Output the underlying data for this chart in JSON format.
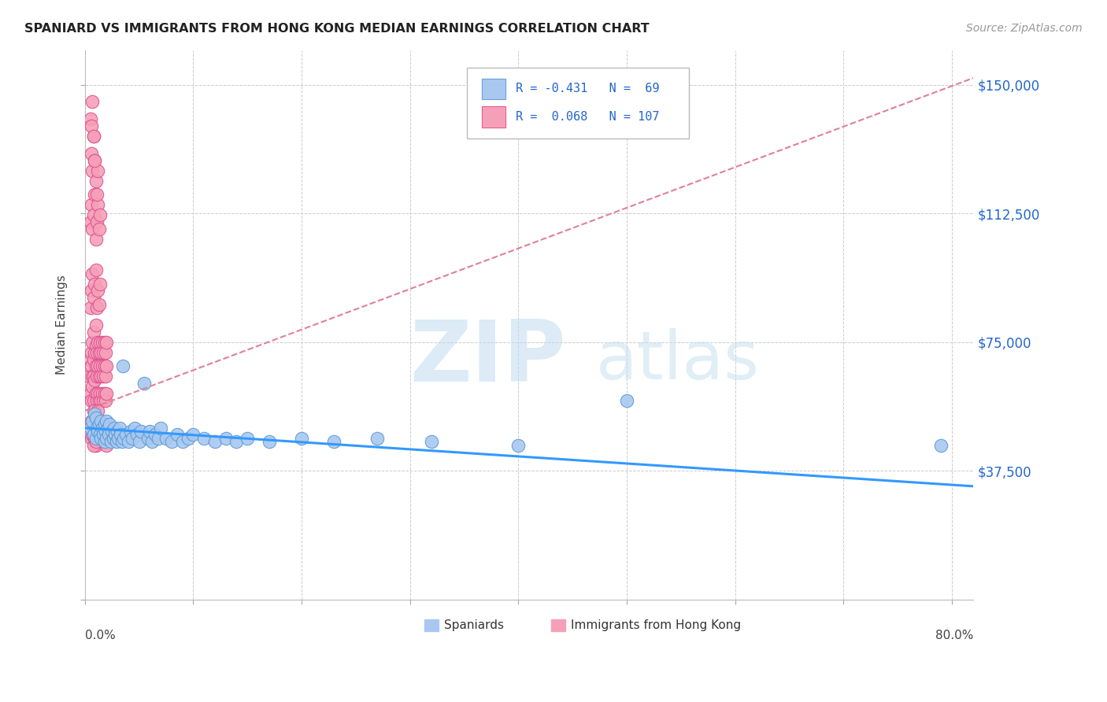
{
  "title": "SPANIARD VS IMMIGRANTS FROM HONG KONG MEDIAN EARNINGS CORRELATION CHART",
  "source": "Source: ZipAtlas.com",
  "ylabel": "Median Earnings",
  "y_ticks": [
    0,
    37500,
    75000,
    112500,
    150000
  ],
  "x_lim": [
    0.0,
    0.82
  ],
  "y_lim": [
    15000,
    160000
  ],
  "blue_color": "#A8C8F0",
  "pink_color": "#F5A0B8",
  "blue_edge": "#5B9BD5",
  "pink_edge": "#E05090",
  "blue_line": "#3399FF",
  "pink_line": "#E08098",
  "legend_text_color": "#2266CC",
  "title_color": "#222222",
  "source_color": "#999999",
  "grid_color": "#CCCCCC",
  "spaniards_x": [
    0.005,
    0.007,
    0.008,
    0.009,
    0.01,
    0.01,
    0.011,
    0.012,
    0.013,
    0.014,
    0.015,
    0.015,
    0.016,
    0.017,
    0.018,
    0.018,
    0.019,
    0.02,
    0.02,
    0.021,
    0.022,
    0.023,
    0.024,
    0.025,
    0.026,
    0.027,
    0.028,
    0.029,
    0.03,
    0.031,
    0.032,
    0.033,
    0.034,
    0.035,
    0.036,
    0.038,
    0.04,
    0.042,
    0.044,
    0.046,
    0.048,
    0.05,
    0.052,
    0.055,
    0.058,
    0.06,
    0.062,
    0.065,
    0.068,
    0.07,
    0.075,
    0.08,
    0.085,
    0.09,
    0.095,
    0.1,
    0.11,
    0.12,
    0.13,
    0.14,
    0.15,
    0.17,
    0.2,
    0.23,
    0.27,
    0.32,
    0.4,
    0.5,
    0.79
  ],
  "spaniards_y": [
    50000,
    52000,
    48000,
    54000,
    47000,
    53000,
    50000,
    49000,
    51000,
    48000,
    52000,
    47000,
    50000,
    48000,
    51000,
    46000,
    49000,
    52000,
    47000,
    50000,
    48000,
    51000,
    46000,
    49000,
    47000,
    50000,
    48000,
    46000,
    49000,
    47000,
    50000,
    48000,
    46000,
    68000,
    47000,
    48000,
    46000,
    49000,
    47000,
    50000,
    48000,
    46000,
    49000,
    63000,
    47000,
    49000,
    46000,
    48000,
    47000,
    50000,
    47000,
    46000,
    48000,
    46000,
    47000,
    48000,
    47000,
    46000,
    47000,
    46000,
    47000,
    46000,
    47000,
    46000,
    47000,
    46000,
    45000,
    58000,
    45000
  ],
  "hk_x": [
    0.004,
    0.005,
    0.005,
    0.006,
    0.006,
    0.006,
    0.007,
    0.007,
    0.007,
    0.008,
    0.008,
    0.008,
    0.008,
    0.009,
    0.009,
    0.009,
    0.01,
    0.01,
    0.01,
    0.01,
    0.011,
    0.011,
    0.011,
    0.012,
    0.012,
    0.012,
    0.013,
    0.013,
    0.013,
    0.014,
    0.014,
    0.014,
    0.015,
    0.015,
    0.015,
    0.016,
    0.016,
    0.016,
    0.017,
    0.017,
    0.017,
    0.018,
    0.018,
    0.018,
    0.019,
    0.019,
    0.019,
    0.02,
    0.02,
    0.02,
    0.005,
    0.006,
    0.007,
    0.008,
    0.009,
    0.01,
    0.011,
    0.012,
    0.013,
    0.014,
    0.005,
    0.006,
    0.007,
    0.008,
    0.009,
    0.01,
    0.011,
    0.012,
    0.013,
    0.014,
    0.005,
    0.006,
    0.007,
    0.008,
    0.009,
    0.01,
    0.011,
    0.012,
    0.006,
    0.007,
    0.008,
    0.009,
    0.01,
    0.011,
    0.012,
    0.005,
    0.006,
    0.007,
    0.008,
    0.009,
    0.01,
    0.011,
    0.012,
    0.013,
    0.014,
    0.015,
    0.016,
    0.017,
    0.018,
    0.02,
    0.006,
    0.007,
    0.008,
    0.009,
    0.01,
    0.02,
    0.025
  ],
  "hk_y": [
    65000,
    70000,
    60000,
    68000,
    72000,
    58000,
    65000,
    75000,
    62000,
    70000,
    65000,
    78000,
    58000,
    72000,
    64000,
    55000,
    68000,
    74000,
    60000,
    80000,
    65000,
    72000,
    58000,
    68000,
    75000,
    60000,
    65000,
    72000,
    58000,
    68000,
    75000,
    60000,
    65000,
    72000,
    58000,
    68000,
    75000,
    60000,
    65000,
    72000,
    58000,
    68000,
    75000,
    60000,
    65000,
    72000,
    58000,
    68000,
    75000,
    60000,
    85000,
    90000,
    95000,
    88000,
    92000,
    96000,
    85000,
    90000,
    86000,
    92000,
    110000,
    115000,
    108000,
    112000,
    118000,
    105000,
    110000,
    115000,
    108000,
    112000,
    48000,
    52000,
    50000,
    55000,
    48000,
    52000,
    50000,
    55000,
    130000,
    125000,
    135000,
    128000,
    122000,
    118000,
    125000,
    140000,
    138000,
    145000,
    135000,
    128000,
    45000,
    48000,
    52000,
    50000,
    46000,
    48000,
    50000,
    46000,
    48000,
    50000,
    47000,
    48000,
    45000,
    47000,
    46000,
    45000,
    47000
  ]
}
